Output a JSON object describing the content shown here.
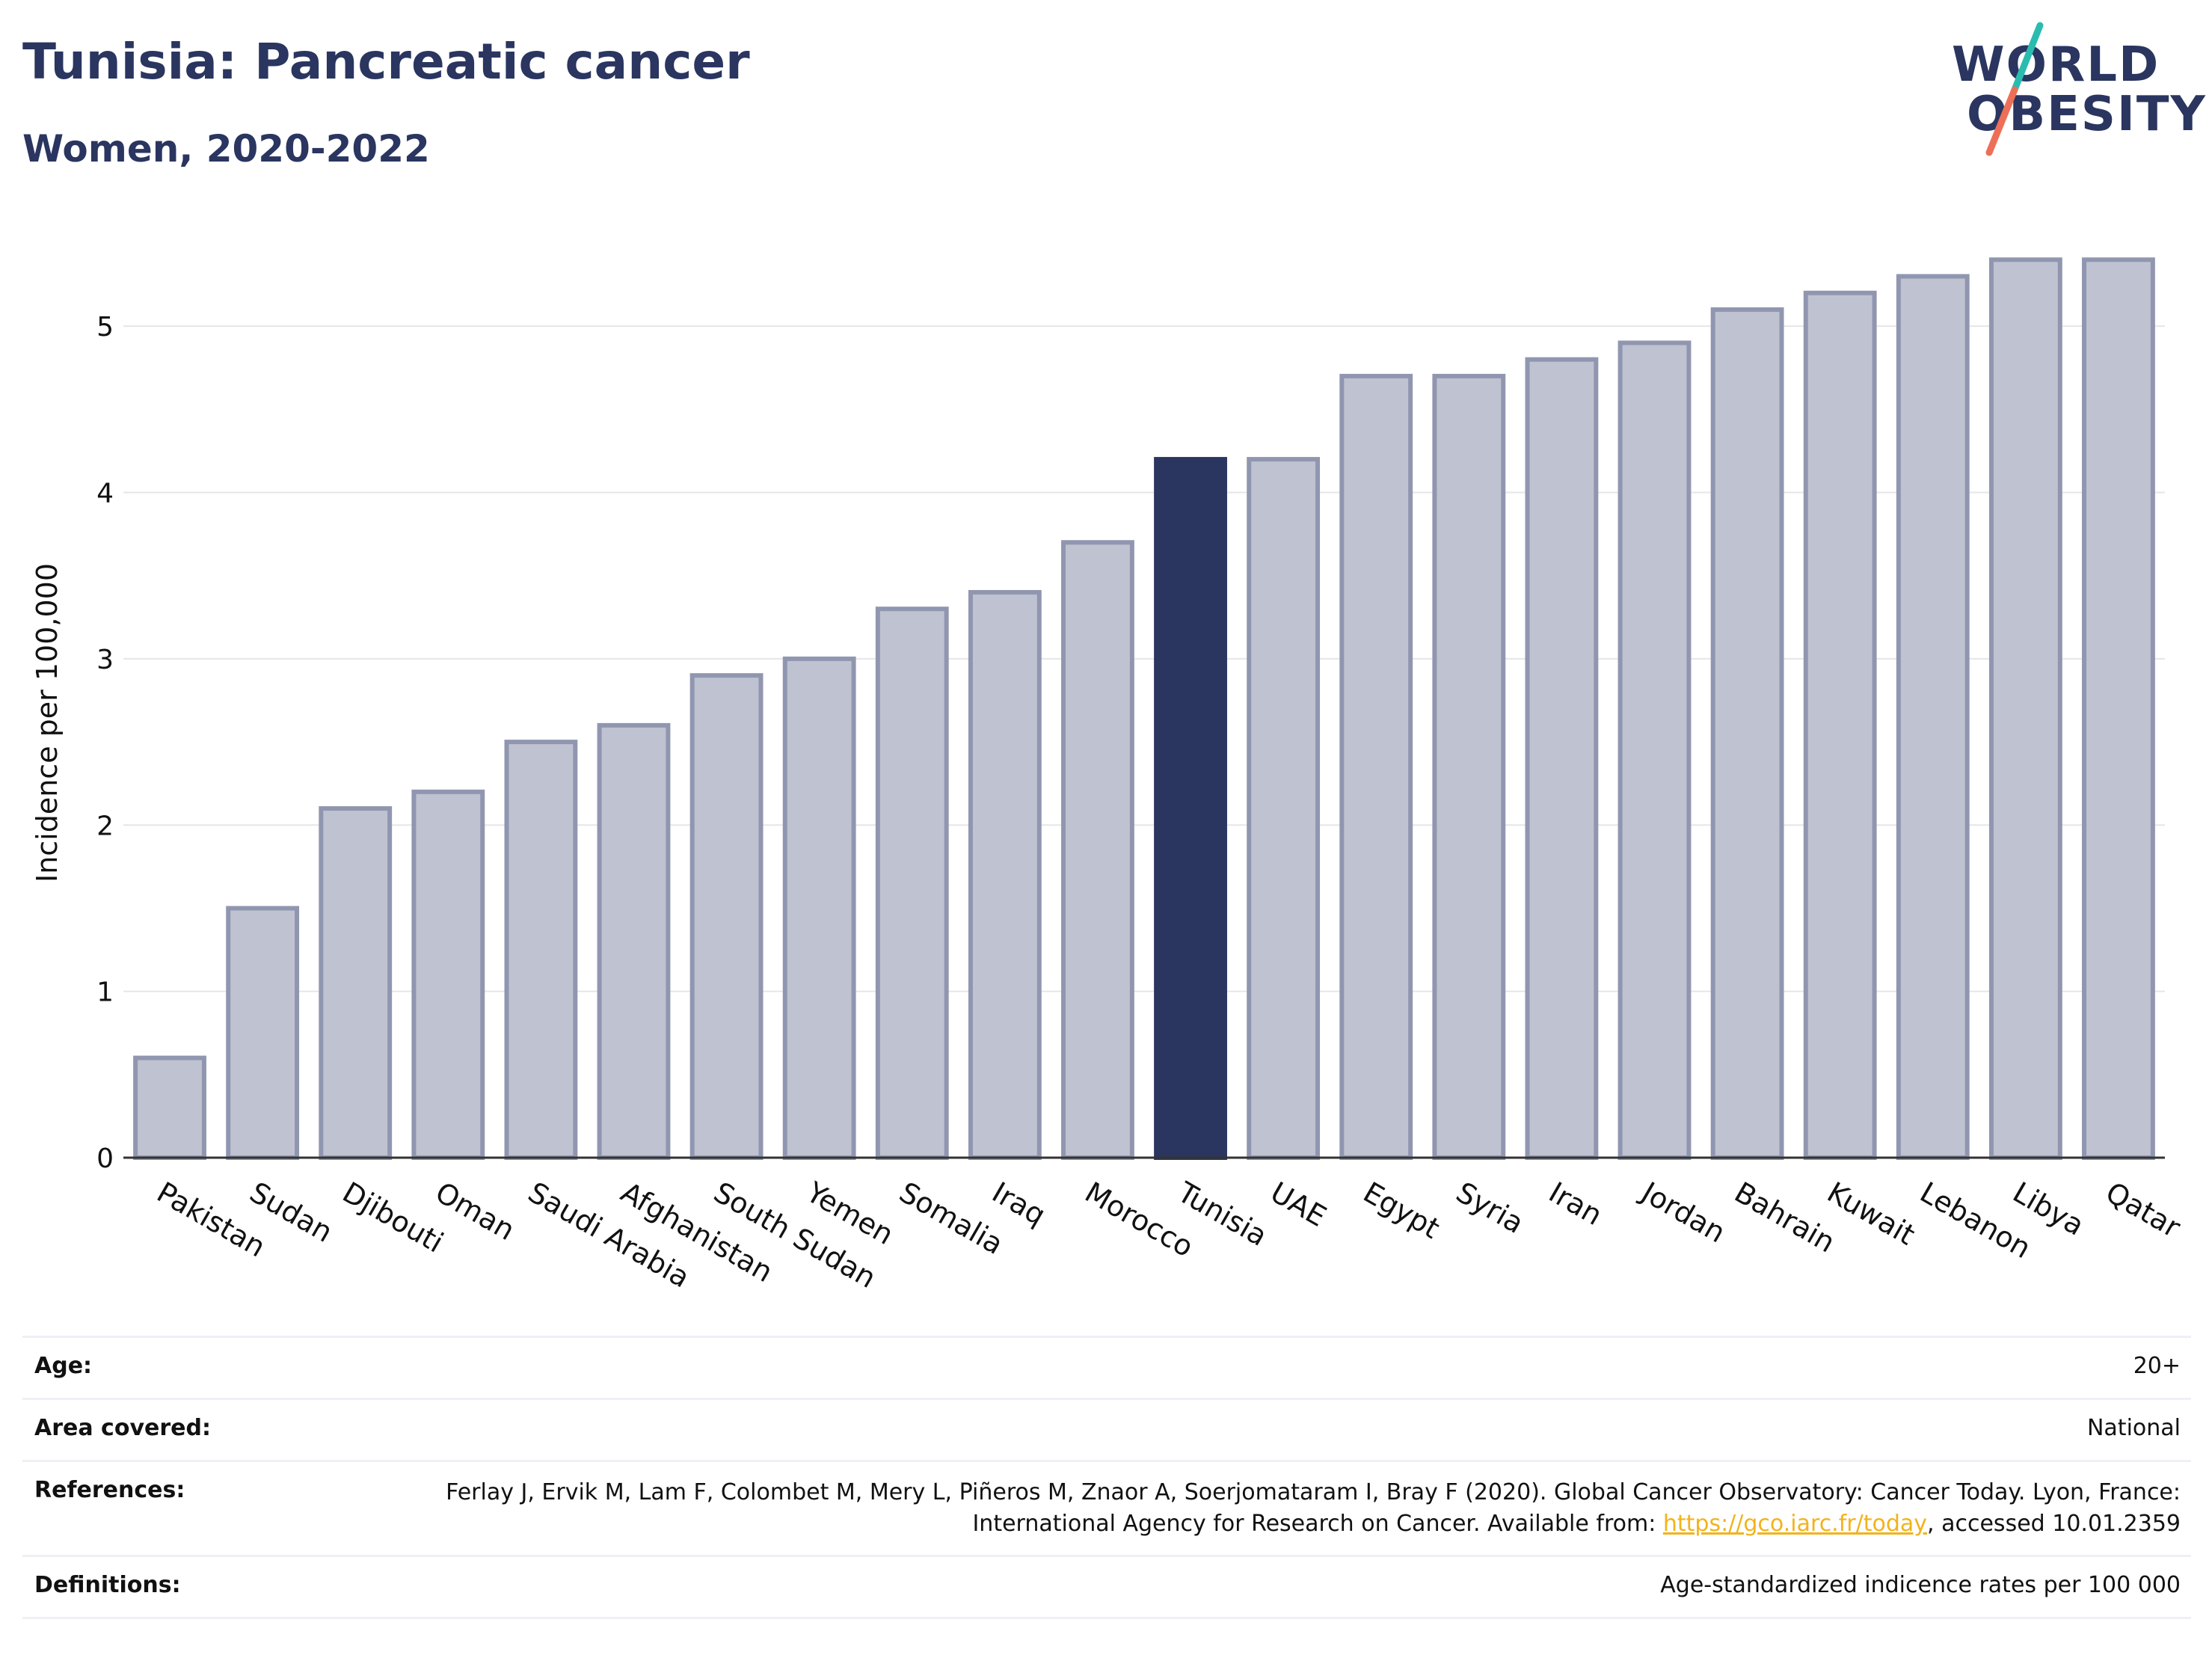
{
  "header": {
    "title": "Tunisia: Pancreatic cancer",
    "subtitle": "Women, 2020-2022"
  },
  "logo": {
    "line1": "WORLD",
    "line2": "OBESITY"
  },
  "chart_data": {
    "type": "bar",
    "categories": [
      "Pakistan",
      "Sudan",
      "Djibouti",
      "Oman",
      "Saudi Arabia",
      "Afghanistan",
      "South Sudan",
      "Yemen",
      "Somalia",
      "Iraq",
      "Morocco",
      "Tunisia",
      "UAE",
      "Egypt",
      "Syria",
      "Iran",
      "Jordan",
      "Bahrain",
      "Kuwait",
      "Lebanon",
      "Libya",
      "Qatar"
    ],
    "values": [
      0.6,
      1.5,
      2.1,
      2.2,
      2.5,
      2.6,
      2.9,
      3.0,
      3.3,
      3.4,
      3.7,
      4.2,
      4.2,
      4.7,
      4.7,
      4.8,
      4.9,
      5.1,
      5.2,
      5.3,
      5.4,
      5.4
    ],
    "highlight": "Tunisia",
    "ylabel": "Incidence per 100,000",
    "xlabel": "",
    "ylim": [
      0,
      5.5
    ],
    "yticks": [
      0,
      1,
      2,
      3,
      4,
      5
    ],
    "grid": true,
    "colors": {
      "bar": "#bfc2d0",
      "bar_border": "#9196b0",
      "highlight": "#2a3560",
      "grid": "#e6e6ea"
    }
  },
  "footer": {
    "age_label": "Age:",
    "age_value": "20+",
    "area_label": "Area covered:",
    "area_value": "National",
    "references_label": "References:",
    "references_text": "Ferlay J, Ervik M, Lam F, Colombet M, Mery L, Piñeros M, Znaor A, Soerjomataram I, Bray F (2020). Global Cancer Observatory: Cancer Today. Lyon, France: International Agency for Research on Cancer. Available from: ",
    "references_link": "https://gco.iarc.fr/today",
    "references_suffix": ", accessed 10.01.2359",
    "definitions_label": "Definitions:",
    "definitions_value": "Age-standardized indicence rates per 100 000"
  }
}
